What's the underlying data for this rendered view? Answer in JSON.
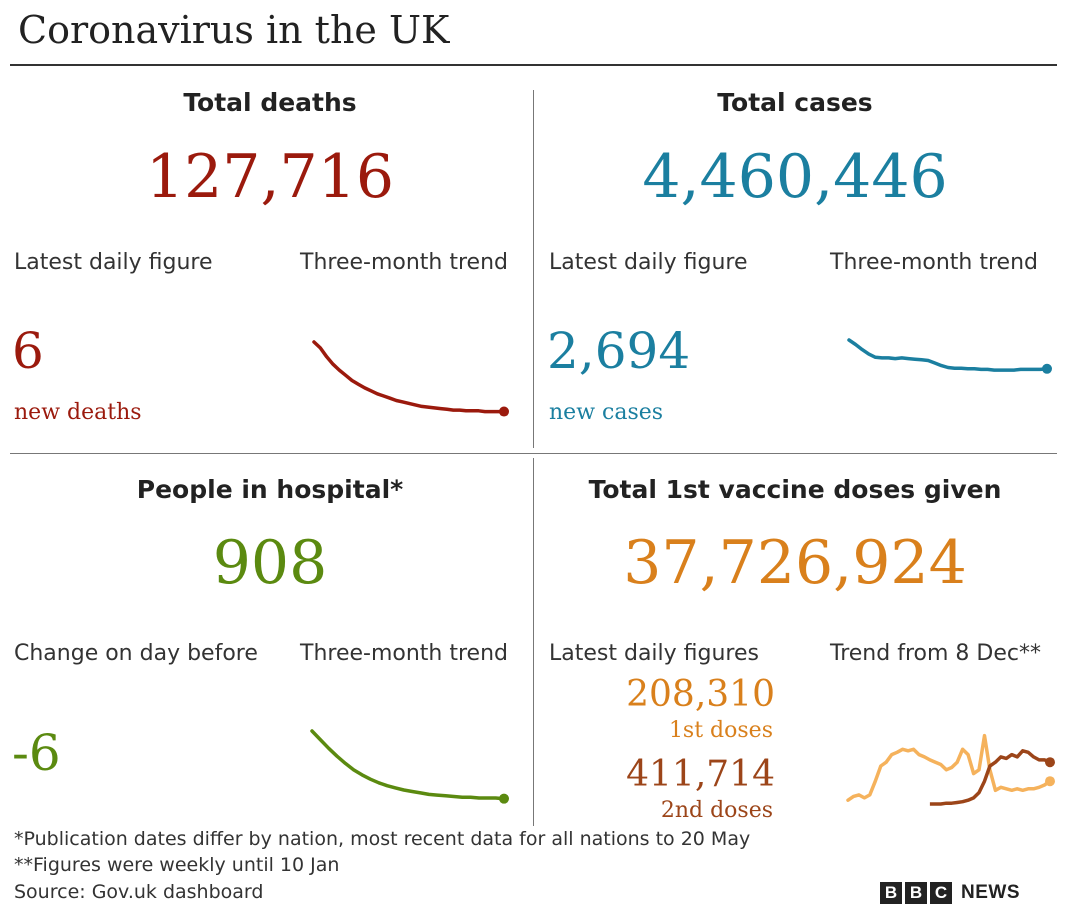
{
  "title": "Coronavirus in the UK",
  "colors": {
    "deaths": "#9b1a0d",
    "cases": "#1b7fa0",
    "hospital": "#5b8a10",
    "vaccine_first": "#d9801c",
    "vaccine_first_light": "#f5b25c",
    "vaccine_second": "#9c4519"
  },
  "deaths": {
    "heading": "Total deaths",
    "total": "127,716",
    "latest_label": "Latest daily figure",
    "trend_label": "Three-month trend",
    "latest_value": "6",
    "latest_unit": "new deaths"
  },
  "cases": {
    "heading": "Total cases",
    "total": "4,460,446",
    "latest_label": "Latest daily figure",
    "trend_label": "Three-month trend",
    "latest_value": "2,694",
    "latest_unit": "new cases"
  },
  "hospital": {
    "heading": "People in hospital*",
    "total": "908",
    "latest_label": "Change on day before",
    "trend_label": "Three-month trend",
    "latest_value": "-6"
  },
  "vaccine": {
    "heading": "Total 1st vaccine doses given",
    "total": "37,726,924",
    "latest_label": "Latest daily figures",
    "trend_label": "Trend from 8 Dec**",
    "first_value": "208,310",
    "first_unit": "1st doses",
    "second_value": "411,714",
    "second_unit": "2nd doses"
  },
  "footnotes": {
    "note1": "*Publication dates differ by nation, most recent data for all nations to 20 May",
    "note2": "**Figures were weekly until 10 Jan",
    "source": "Source: Gov.uk dashboard"
  },
  "brand": {
    "letters": [
      "B",
      "B",
      "C"
    ],
    "word": "NEWS"
  },
  "chart_data": [
    {
      "type": "line",
      "name": "deaths-trend",
      "values": [
        100,
        92,
        80,
        70,
        62,
        55,
        48,
        43,
        38,
        34,
        30,
        27,
        24,
        21,
        19,
        17,
        15,
        13,
        12,
        11,
        10,
        9,
        8,
        8,
        7,
        7,
        7,
        6,
        6,
        6,
        6
      ]
    },
    {
      "type": "line",
      "name": "cases-trend",
      "values": [
        100,
        93,
        85,
        78,
        73,
        72,
        72,
        71,
        72,
        71,
        70,
        69,
        68,
        64,
        60,
        57,
        56,
        56,
        55,
        55,
        54,
        54,
        53,
        53,
        53,
        53,
        54,
        54,
        54,
        54,
        55
      ]
    },
    {
      "type": "line",
      "name": "hospital-trend",
      "values": [
        100,
        88,
        76,
        65,
        55,
        46,
        39,
        33,
        28,
        24,
        21,
        18,
        16,
        14,
        12,
        11,
        10,
        9,
        8,
        8,
        7,
        7,
        7,
        6
      ]
    },
    {
      "type": "line",
      "name": "vaccine-trend",
      "series": [
        {
          "values": [
            5,
            10,
            12,
            8,
            12,
            30,
            50,
            55,
            65,
            68,
            72,
            70,
            72,
            65,
            62,
            58,
            55,
            52,
            45,
            48,
            55,
            72,
            65,
            40,
            45,
            90,
            45,
            18,
            22,
            20,
            18,
            20,
            18,
            20,
            20,
            22,
            25,
            30
          ]
        },
        {
          "values": [
            0,
            0,
            0,
            1,
            1,
            2,
            3,
            5,
            8,
            15,
            30,
            50,
            55,
            62,
            60,
            65,
            62,
            70,
            68,
            62,
            58,
            58,
            55
          ]
        }
      ]
    }
  ]
}
